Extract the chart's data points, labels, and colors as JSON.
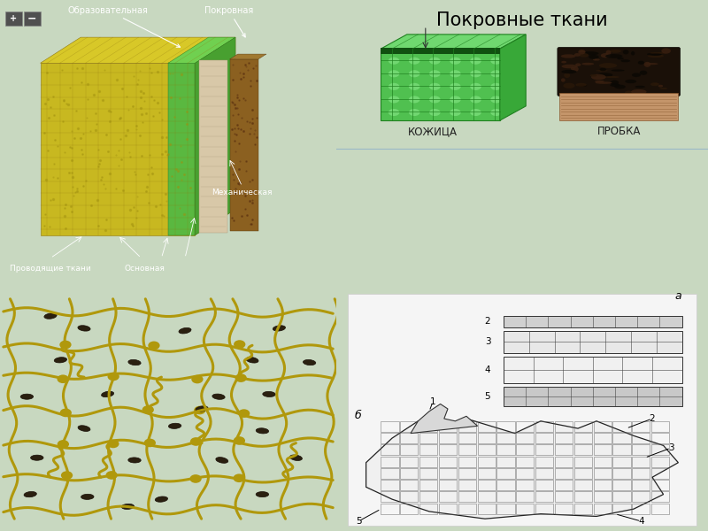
{
  "title": "Покровные ткани",
  "label_kojica": "КОЖИЦА",
  "label_probka": "ПРОБКА",
  "top_left_bg": "#000000",
  "top_right_bg": "#c5dce8",
  "bottom_left_bg": "#ffffff",
  "bottom_right_bg": "#ffffff",
  "slide_bg": "#c8d8c0",
  "fig_width": 8.0,
  "fig_height": 6.0,
  "dpi": 100
}
